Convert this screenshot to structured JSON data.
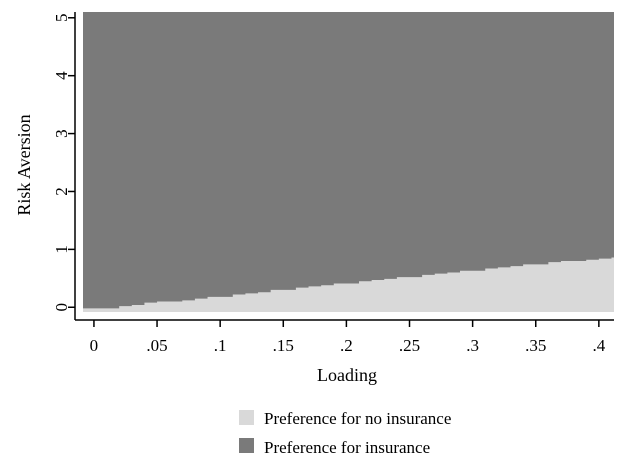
{
  "chart_data": {
    "type": "area",
    "title": "",
    "xlabel": "Loading",
    "ylabel": "Risk Aversion",
    "xlim": [
      -0.015,
      0.412
    ],
    "ylim": [
      -0.22,
      5.1
    ],
    "x_ticks": [
      0,
      0.05,
      0.1,
      0.15,
      0.2,
      0.25,
      0.3,
      0.35,
      0.4
    ],
    "x_tick_labels": [
      "0",
      ".05",
      ".1",
      ".15",
      ".2",
      ".25",
      ".3",
      ".35",
      ".4"
    ],
    "y_ticks": [
      0,
      1,
      2,
      3,
      4,
      5
    ],
    "y_tick_labels": [
      "0",
      "1",
      "2",
      "3",
      "4",
      "5"
    ],
    "grid": false,
    "legend_position": "bottom",
    "boundary": {
      "x": [
        -0.01,
        0.0,
        0.01,
        0.02,
        0.03,
        0.04,
        0.05,
        0.06,
        0.07,
        0.08,
        0.09,
        0.1,
        0.11,
        0.12,
        0.13,
        0.14,
        0.15,
        0.16,
        0.17,
        0.18,
        0.19,
        0.2,
        0.21,
        0.22,
        0.23,
        0.24,
        0.25,
        0.26,
        0.27,
        0.28,
        0.29,
        0.3,
        0.31,
        0.32,
        0.33,
        0.34,
        0.35,
        0.36,
        0.37,
        0.38,
        0.39,
        0.4,
        0.41
      ],
      "y": [
        -0.02,
        -0.02,
        -0.02,
        0.02,
        0.04,
        0.08,
        0.1,
        0.1,
        0.12,
        0.15,
        0.18,
        0.18,
        0.22,
        0.24,
        0.26,
        0.3,
        0.3,
        0.34,
        0.36,
        0.38,
        0.41,
        0.41,
        0.45,
        0.47,
        0.49,
        0.52,
        0.52,
        0.56,
        0.58,
        0.6,
        0.63,
        0.63,
        0.67,
        0.69,
        0.71,
        0.74,
        0.74,
        0.78,
        0.8,
        0.8,
        0.82,
        0.84,
        0.86
      ]
    },
    "series": [
      {
        "name": "Preference for no insurance",
        "color": "#d9d9d9"
      },
      {
        "name": "Preference for insurance",
        "color": "#7a7a7a"
      }
    ]
  }
}
